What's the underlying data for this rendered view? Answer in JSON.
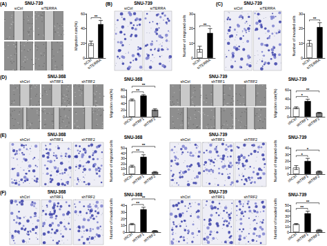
{
  "panel_labels": [
    "(A)",
    "(B)",
    "(C)",
    "(D)",
    "(E)",
    "(F)"
  ],
  "image_sets": [
    {
      "title": "SNU-739",
      "labels": [
        "siCtrl",
        "siTERRA"
      ]
    },
    {
      "title": "SNU-739",
      "labels": [
        "siCtrl",
        "siTERRA"
      ]
    },
    {
      "title": "SNU-739",
      "labels": [
        "siCtrl",
        "siTERRA"
      ]
    },
    {
      "title": "SNU-368",
      "labels": [
        "shCtrl",
        "shTRF1",
        "shTRF2"
      ]
    },
    {
      "title": "SNU-739",
      "labels": [
        "shCtrl",
        "shTRF1",
        "shTRF2"
      ]
    },
    {
      "title": "SNU-368",
      "labels": [
        "shCtrl",
        "shTRF1",
        "shTRF2"
      ]
    },
    {
      "title": "SNU-739",
      "labels": [
        "shCtrl",
        "shTRF1",
        "shTRF2"
      ]
    },
    {
      "title": "SNU-368",
      "labels": [
        "shCtrl",
        "shTRF1",
        "shTRF2"
      ]
    },
    {
      "title": "SNU-739",
      "labels": [
        "shCtrl",
        "shTRF1",
        "shTRF2"
      ]
    }
  ],
  "chart_data": [
    {
      "type": "bar",
      "y_label": "Migration rate(%)",
      "categories": [
        "siCtrl",
        "siTERRA"
      ],
      "values": [
        20,
        46
      ],
      "errors": [
        3,
        5
      ],
      "colors": [
        "#ffffff",
        "#000000"
      ],
      "ylim": [
        0,
        60
      ],
      "yticks": [
        0,
        20,
        40,
        60
      ],
      "grid": false,
      "annotations": [
        {
          "text": "**",
          "between": [
            "siCtrl",
            "siTERRA"
          ]
        }
      ]
    },
    {
      "type": "bar",
      "y_label": "Number of migrated cells",
      "categories": [
        "siCtrl",
        "siTERRA"
      ],
      "values": [
        6,
        17
      ],
      "errors": [
        2,
        3
      ],
      "colors": [
        "#ffffff",
        "#000000"
      ],
      "ylim": [
        0,
        30
      ],
      "yticks": [
        0,
        10,
        20,
        30
      ],
      "grid": false,
      "annotations": [
        {
          "text": "**",
          "between": [
            "siCtrl",
            "siTERRA"
          ]
        }
      ]
    },
    {
      "type": "bar",
      "y_label": "Number of invaded cells",
      "categories": [
        "siCtrl",
        "siTERRA"
      ],
      "values": [
        10,
        21
      ],
      "errors": [
        2,
        3
      ],
      "colors": [
        "#ffffff",
        "#000000"
      ],
      "ylim": [
        0,
        30
      ],
      "yticks": [
        0,
        10,
        20,
        30
      ],
      "grid": false,
      "annotations": [
        {
          "text": "**",
          "between": [
            "siCtrl",
            "siTERRA"
          ]
        }
      ]
    },
    {
      "type": "bar",
      "title": "SNU-368",
      "y_label": "Migration rate(%)",
      "categories": [
        "shCtrl",
        "shTRF1",
        "shTRF2"
      ],
      "values": [
        50,
        63,
        21
      ],
      "errors": [
        3,
        3,
        3
      ],
      "colors": [
        "#ffffff",
        "#000000",
        "#808080"
      ],
      "ylim": [
        0,
        80
      ],
      "yticks": [
        0,
        20,
        40,
        60,
        80
      ],
      "grid": false,
      "annotations": [
        {
          "text": "**",
          "between": [
            "shCtrl",
            "shTRF1"
          ]
        },
        {
          "text": "**",
          "between": [
            "shCtrl",
            "shTRF2"
          ]
        }
      ]
    },
    {
      "type": "bar",
      "title": "SNU-739",
      "y_label": "Migration rate(%)",
      "categories": [
        "shCtrl",
        "shTRF1",
        "shTRF2"
      ],
      "values": [
        20,
        35,
        9
      ],
      "errors": [
        2,
        4,
        1
      ],
      "colors": [
        "#ffffff",
        "#000000",
        "#808080"
      ],
      "ylim": [
        0,
        60
      ],
      "yticks": [
        0,
        20,
        40,
        60
      ],
      "grid": false,
      "annotations": [
        {
          "text": "*",
          "between": [
            "shCtrl",
            "shTRF1"
          ]
        },
        {
          "text": "**",
          "between": [
            "shCtrl",
            "shTRF2"
          ]
        }
      ]
    },
    {
      "type": "bar",
      "title": "SNU-368",
      "y_label": "Number of migrated cells",
      "categories": [
        "shCtrl",
        "shTRF1",
        "shTRF2"
      ],
      "values": [
        15,
        33,
        4
      ],
      "errors": [
        2,
        4,
        1
      ],
      "colors": [
        "#ffffff",
        "#000000",
        "#808080"
      ],
      "ylim": [
        0,
        50
      ],
      "yticks": [
        0,
        10,
        20,
        30,
        40,
        50
      ],
      "grid": false,
      "annotations": [
        {
          "text": "**",
          "between": [
            "shCtrl",
            "shTRF1"
          ]
        },
        {
          "text": "**",
          "between": [
            "shCtrl",
            "shTRF2"
          ]
        }
      ]
    },
    {
      "type": "bar",
      "title": "SNU-739",
      "y_label": "Number of migrated cells",
      "categories": [
        "shCtrl",
        "shTRF1",
        "shTRF2"
      ],
      "values": [
        10,
        20,
        4
      ],
      "errors": [
        3,
        4,
        1
      ],
      "colors": [
        "#ffffff",
        "#000000",
        "#808080"
      ],
      "ylim": [
        0,
        40
      ],
      "yticks": [
        0,
        10,
        20,
        30,
        40
      ],
      "grid": false,
      "annotations": [
        {
          "text": "*",
          "between": [
            "shCtrl",
            "shTRF1"
          ]
        },
        {
          "text": "*",
          "between": [
            "shCtrl",
            "shTRF2"
          ]
        }
      ]
    },
    {
      "type": "bar",
      "title": "SNU-368",
      "y_label": "Number of invaded cells",
      "categories": [
        "shCtrl",
        "shTRF1",
        "shTRF2"
      ],
      "values": [
        12,
        34,
        2
      ],
      "errors": [
        1,
        3,
        0.5
      ],
      "colors": [
        "#ffffff",
        "#000000",
        "#808080"
      ],
      "ylim": [
        0,
        40
      ],
      "yticks": [
        0,
        10,
        20,
        30,
        40
      ],
      "grid": false,
      "annotations": [
        {
          "text": "**",
          "between": [
            "shCtrl",
            "shTRF1"
          ]
        },
        {
          "text": "**",
          "between": [
            "shCtrl",
            "shTRF2"
          ]
        }
      ]
    },
    {
      "type": "bar",
      "title": "SNU-739",
      "y_label": "Number of invaded cells",
      "categories": [
        "shCtrl",
        "shTRF1",
        "shTRF2"
      ],
      "values": [
        15,
        35,
        4
      ],
      "errors": [
        1,
        4,
        1
      ],
      "colors": [
        "#ffffff",
        "#000000",
        "#808080"
      ],
      "ylim": [
        0,
        50
      ],
      "yticks": [
        0,
        10,
        20,
        30,
        40,
        50
      ],
      "grid": false,
      "annotations": [
        {
          "text": "**",
          "between": [
            "shCtrl",
            "shTRF1"
          ]
        },
        {
          "text": "**",
          "between": [
            "shCtrl",
            "shTRF2"
          ]
        }
      ]
    }
  ]
}
